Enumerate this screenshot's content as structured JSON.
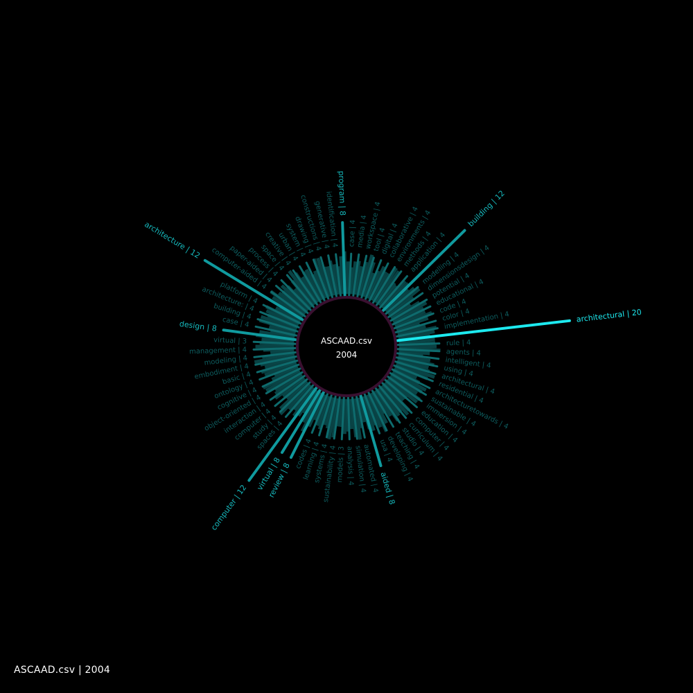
{
  "footer_label": "ASCAAD.csv | 2004",
  "center": {
    "file": "ASCAAD.csv",
    "year": "2004"
  },
  "colors": {
    "background": "#000000",
    "accent": "#1de9ef",
    "mid": "#109a9e",
    "dim": "#0c5a5c",
    "ring": "#3a1030"
  },
  "chart_data": {
    "type": "radial-bar",
    "title": "",
    "series": [
      {
        "values": [
          {
            "word": "architectural",
            "count": 20
          },
          {
            "word": "implementation",
            "count": 4
          },
          {
            "word": "color",
            "count": 4
          },
          {
            "word": "code",
            "count": 4
          },
          {
            "word": "educational",
            "count": 4
          },
          {
            "word": "potential",
            "count": 4
          },
          {
            "word": "dimensionsdesign",
            "count": 4
          },
          {
            "word": "modelling",
            "count": 4
          },
          {
            "word": "building",
            "count": 12
          },
          {
            "word": "application",
            "count": 4
          },
          {
            "word": "methods",
            "count": 4
          },
          {
            "word": "environments",
            "count": 4
          },
          {
            "word": "collaborative",
            "count": 4
          },
          {
            "word": "digital",
            "count": 4
          },
          {
            "word": "tool",
            "count": 4
          },
          {
            "word": "workspace",
            "count": 4
          },
          {
            "word": "media",
            "count": 4
          },
          {
            "word": "case",
            "count": 4
          },
          {
            "word": "program",
            "count": 8
          },
          {
            "word": "identification",
            "count": 4
          },
          {
            "word": "generative",
            "count": 4
          },
          {
            "word": "constructions",
            "count": 4
          },
          {
            "word": "drawing",
            "count": 4
          },
          {
            "word": "system",
            "count": 4
          },
          {
            "word": "urban",
            "count": 4
          },
          {
            "word": "creative",
            "count": 4
          },
          {
            "word": "space",
            "count": 4
          },
          {
            "word": "process",
            "count": 4
          },
          {
            "word": "paper-aided",
            "count": 4
          },
          {
            "word": "computer-aided",
            "count": 4
          },
          {
            "word": "architecture",
            "count": 12
          },
          {
            "word": "platform",
            "count": 4
          },
          {
            "word": "architecture:",
            "count": 4
          },
          {
            "word": "building",
            "count": 4
          },
          {
            "word": "case",
            "count": 4
          },
          {
            "word": "design",
            "count": 8
          },
          {
            "word": "virtual",
            "count": 3
          },
          {
            "word": "management",
            "count": 4
          },
          {
            "word": "modeling",
            "count": 4
          },
          {
            "word": "embodiment",
            "count": 4
          },
          {
            "word": "basic",
            "count": 4
          },
          {
            "word": "ontology",
            "count": 4
          },
          {
            "word": "cognitive",
            "count": 4
          },
          {
            "word": "object-oriented",
            "count": 4
          },
          {
            "word": "interaction",
            "count": 4
          },
          {
            "word": "computer",
            "count": 4
          },
          {
            "word": "study",
            "count": 4
          },
          {
            "word": "spaces",
            "count": 4
          },
          {
            "word": "computer",
            "count": 12
          },
          {
            "word": "virtual",
            "count": 8
          },
          {
            "word": "review",
            "count": 8
          },
          {
            "word": "codes",
            "count": 4
          },
          {
            "word": "learning",
            "count": 4
          },
          {
            "word": "systems",
            "count": 4
          },
          {
            "word": "sustainability",
            "count": 4
          },
          {
            "word": "models",
            "count": 3
          },
          {
            "word": "analysis",
            "count": 4
          },
          {
            "word": "simulation",
            "count": 4
          },
          {
            "word": "automated",
            "count": 4
          },
          {
            "word": "aided",
            "count": 8
          },
          {
            "word": "usa",
            "count": 4
          },
          {
            "word": "developing",
            "count": 4
          },
          {
            "word": "teaching",
            "count": 4
          },
          {
            "word": "studio",
            "count": 4
          },
          {
            "word": "curriculum",
            "count": 4
          },
          {
            "word": "computer",
            "count": 4
          },
          {
            "word": "education",
            "count": 4
          },
          {
            "word": "immersion",
            "count": 4
          },
          {
            "word": "sustainable",
            "count": 4
          },
          {
            "word": "architecturetowards",
            "count": 4
          },
          {
            "word": "residential",
            "count": 4
          },
          {
            "word": "architectural",
            "count": 4
          },
          {
            "word": "using",
            "count": 4
          },
          {
            "word": "intelligent",
            "count": 4
          },
          {
            "word": "agents",
            "count": 4
          },
          {
            "word": "rule",
            "count": 4
          }
        ]
      }
    ]
  }
}
